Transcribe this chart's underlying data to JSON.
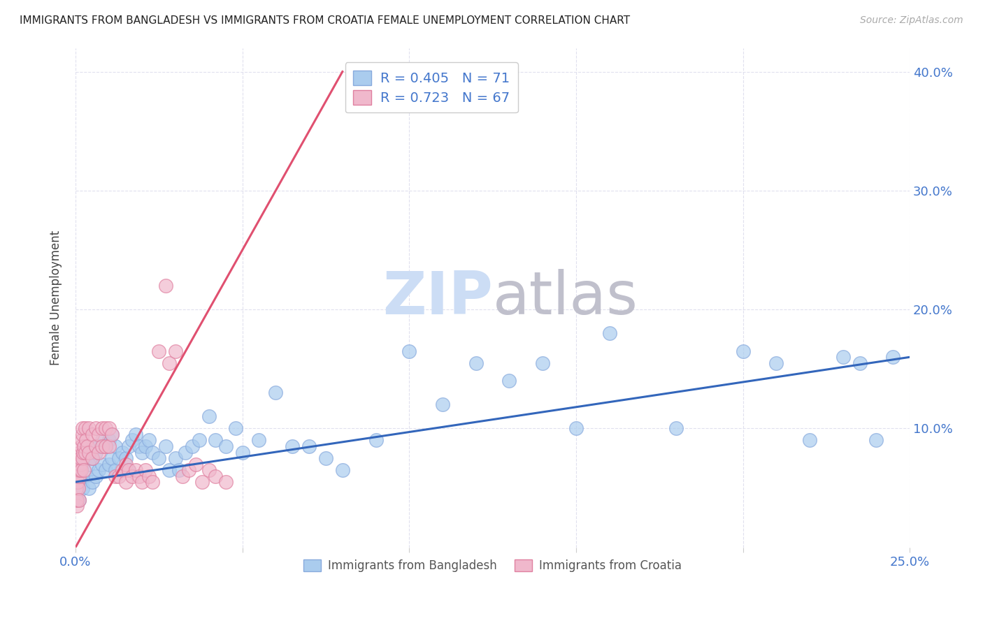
{
  "title": "IMMIGRANTS FROM BANGLADESH VS IMMIGRANTS FROM CROATIA FEMALE UNEMPLOYMENT CORRELATION CHART",
  "source": "Source: ZipAtlas.com",
  "ylabel": "Female Unemployment",
  "series": [
    {
      "name": "Immigrants from Bangladesh",
      "color": "#aaccee",
      "edge_color": "#88aadd",
      "line_color": "#3366bb",
      "R": 0.405,
      "N": 71,
      "x": [
        0.001,
        0.001,
        0.002,
        0.002,
        0.003,
        0.003,
        0.004,
        0.004,
        0.005,
        0.005,
        0.006,
        0.006,
        0.007,
        0.007,
        0.008,
        0.008,
        0.009,
        0.009,
        0.01,
        0.01,
        0.011,
        0.011,
        0.012,
        0.012,
        0.013,
        0.014,
        0.015,
        0.016,
        0.016,
        0.017,
        0.018,
        0.019,
        0.02,
        0.021,
        0.022,
        0.023,
        0.025,
        0.027,
        0.028,
        0.03,
        0.031,
        0.033,
        0.035,
        0.037,
        0.04,
        0.042,
        0.045,
        0.048,
        0.05,
        0.055,
        0.06,
        0.065,
        0.07,
        0.075,
        0.08,
        0.09,
        0.1,
        0.11,
        0.12,
        0.13,
        0.14,
        0.15,
        0.16,
        0.18,
        0.2,
        0.21,
        0.22,
        0.23,
        0.235,
        0.24,
        0.245
      ],
      "y": [
        0.06,
        0.04,
        0.07,
        0.05,
        0.08,
        0.06,
        0.07,
        0.05,
        0.075,
        0.055,
        0.08,
        0.06,
        0.085,
        0.065,
        0.09,
        0.07,
        0.085,
        0.065,
        0.09,
        0.07,
        0.095,
        0.075,
        0.085,
        0.065,
        0.075,
        0.08,
        0.075,
        0.085,
        0.065,
        0.09,
        0.095,
        0.085,
        0.08,
        0.085,
        0.09,
        0.08,
        0.075,
        0.085,
        0.065,
        0.075,
        0.065,
        0.08,
        0.085,
        0.09,
        0.11,
        0.09,
        0.085,
        0.1,
        0.08,
        0.09,
        0.13,
        0.085,
        0.085,
        0.075,
        0.065,
        0.09,
        0.165,
        0.12,
        0.155,
        0.14,
        0.155,
        0.1,
        0.18,
        0.1,
        0.165,
        0.155,
        0.09,
        0.16,
        0.155,
        0.09,
        0.16
      ]
    },
    {
      "name": "Immigrants from Croatia",
      "color": "#f0b8cc",
      "edge_color": "#e080a0",
      "line_color": "#e05070",
      "R": 0.723,
      "N": 67,
      "x": [
        0.0002,
        0.0003,
        0.0004,
        0.0005,
        0.0005,
        0.0006,
        0.0007,
        0.0008,
        0.0009,
        0.001,
        0.001,
        0.0012,
        0.0013,
        0.0014,
        0.0015,
        0.0016,
        0.0017,
        0.0018,
        0.002,
        0.002,
        0.0022,
        0.0023,
        0.0025,
        0.0025,
        0.003,
        0.003,
        0.0032,
        0.0035,
        0.004,
        0.004,
        0.005,
        0.005,
        0.006,
        0.006,
        0.007,
        0.007,
        0.008,
        0.008,
        0.009,
        0.009,
        0.01,
        0.01,
        0.011,
        0.012,
        0.013,
        0.014,
        0.015,
        0.015,
        0.016,
        0.017,
        0.018,
        0.019,
        0.02,
        0.021,
        0.022,
        0.023,
        0.025,
        0.027,
        0.028,
        0.03,
        0.032,
        0.034,
        0.036,
        0.038,
        0.04,
        0.042,
        0.045
      ],
      "y": [
        0.04,
        0.05,
        0.035,
        0.06,
        0.04,
        0.055,
        0.065,
        0.07,
        0.05,
        0.06,
        0.04,
        0.065,
        0.08,
        0.07,
        0.075,
        0.085,
        0.065,
        0.09,
        0.095,
        0.075,
        0.1,
        0.08,
        0.085,
        0.065,
        0.1,
        0.08,
        0.09,
        0.085,
        0.1,
        0.08,
        0.095,
        0.075,
        0.1,
        0.085,
        0.095,
        0.08,
        0.1,
        0.085,
        0.1,
        0.085,
        0.1,
        0.085,
        0.095,
        0.06,
        0.06,
        0.065,
        0.07,
        0.055,
        0.065,
        0.06,
        0.065,
        0.06,
        0.055,
        0.065,
        0.06,
        0.055,
        0.165,
        0.22,
        0.155,
        0.165,
        0.06,
        0.065,
        0.07,
        0.055,
        0.065,
        0.06,
        0.055
      ]
    }
  ],
  "xlim": [
    0.0,
    0.25
  ],
  "ylim": [
    0.0,
    0.42
  ],
  "yticks": [
    0.0,
    0.1,
    0.2,
    0.3,
    0.4
  ],
  "ytick_labels": [
    "",
    "10.0%",
    "20.0%",
    "30.0%",
    "40.0%"
  ],
  "xticks": [
    0.0,
    0.05,
    0.1,
    0.15,
    0.2,
    0.25
  ],
  "xtick_labels": [
    "0.0%",
    "",
    "",
    "",
    "",
    "25.0%"
  ],
  "grid_color": "#e0e0ee",
  "bg_color": "#ffffff",
  "title_color": "#222222",
  "source_color": "#aaaaaa",
  "axis_label_color": "#4477cc",
  "watermark_color_zip": "#ccddf5",
  "watermark_color_atlas": "#c0c0cc",
  "croatia_line_x": [
    0.0,
    0.08
  ],
  "croatia_line_y": [
    0.0,
    0.4
  ],
  "bangladesh_line_x": [
    0.0,
    0.25
  ],
  "bangladesh_line_y": [
    0.055,
    0.16
  ]
}
